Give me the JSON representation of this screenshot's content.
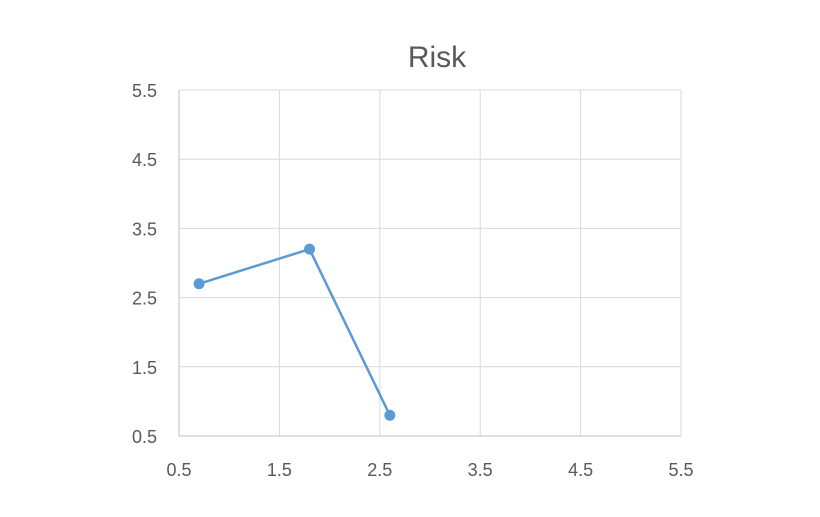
{
  "chart_data": {
    "type": "scatter",
    "title": "Risk",
    "xlabel": "",
    "ylabel": "",
    "xlim": [
      0.5,
      5.5
    ],
    "ylim": [
      0.5,
      5.5
    ],
    "x_ticks": [
      "0.5",
      "1.5",
      "2.5",
      "3.5",
      "4.5",
      "5.5"
    ],
    "y_ticks": [
      "0.5",
      "1.5",
      "2.5",
      "3.5",
      "4.5",
      "5.5"
    ],
    "grid": true,
    "series": [
      {
        "x": [
          0.7,
          1.8,
          2.6
        ],
        "y": [
          2.7,
          3.2,
          0.8
        ],
        "color": "#5b9bd5",
        "connected": true
      }
    ]
  }
}
